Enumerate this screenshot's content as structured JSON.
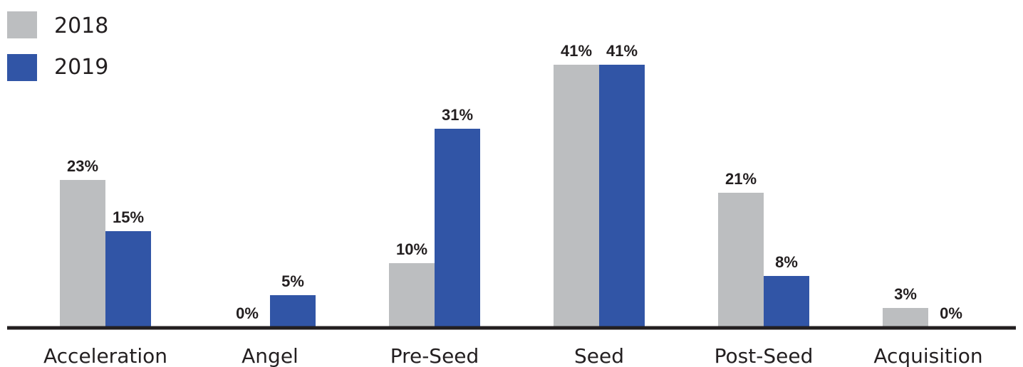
{
  "chart_data": {
    "type": "bar",
    "categories": [
      "Acceleration",
      "Angel",
      "Pre-Seed",
      "Seed",
      "Post-Seed",
      "Acquisition"
    ],
    "series": [
      {
        "name": "2018",
        "values": [
          23,
          0,
          10,
          41,
          21,
          3
        ],
        "labels": [
          "23%",
          "0%",
          "10%",
          "41%",
          "21%",
          "3%"
        ],
        "color": "#bcbec0"
      },
      {
        "name": "2019",
        "values": [
          15,
          5,
          31,
          41,
          8,
          0
        ],
        "labels": [
          "15%",
          "5%",
          "31%",
          "41%",
          "8%",
          "0%"
        ],
        "color": "#3155a6"
      }
    ],
    "ylim": [
      0,
      45
    ],
    "legend_position": "top-left",
    "grid": false,
    "axis_color": "#231f20"
  }
}
